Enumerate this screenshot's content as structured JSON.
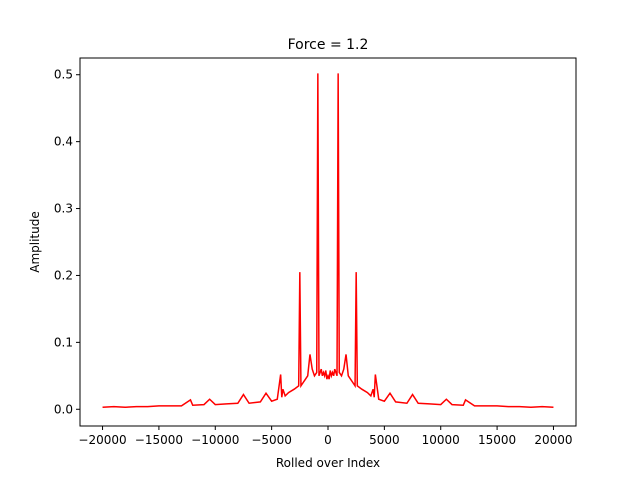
{
  "chart_data": {
    "type": "line",
    "title": "Force = 1.2",
    "xlabel": "Rolled over Index",
    "ylabel": "Amplitude",
    "xlim": [
      -22000,
      22000
    ],
    "ylim": [
      -0.025,
      0.525
    ],
    "grid": false,
    "xticks": [
      -20000,
      -15000,
      -10000,
      -5000,
      0,
      5000,
      10000,
      15000,
      20000
    ],
    "xtick_labels": [
      "−20000",
      "−15000",
      "−10000",
      "−5000",
      "0",
      "5000",
      "10000",
      "15000",
      "20000"
    ],
    "yticks": [
      0.0,
      0.1,
      0.2,
      0.3,
      0.4,
      0.5
    ],
    "ytick_labels": [
      "0.0",
      "0.1",
      "0.2",
      "0.3",
      "0.4",
      "0.5"
    ],
    "series": [
      {
        "color": "#ff0000",
        "x": [
          -20000,
          -19000,
          -18000,
          -17000,
          -16000,
          -15000,
          -14000,
          -13000,
          -12200,
          -12000,
          -11000,
          -10500,
          -10000,
          -9000,
          -8000,
          -7500,
          -7000,
          -6000,
          -5500,
          -5000,
          -4500,
          -4200,
          -4100,
          -4000,
          -3800,
          -3500,
          -3000,
          -2600,
          -2500,
          -2400,
          -2200,
          -2000,
          -1800,
          -1600,
          -1400,
          -1200,
          -1000,
          -900,
          -800,
          -700,
          -600,
          -500,
          -400,
          -300,
          -200,
          -100,
          0,
          100,
          200,
          300,
          400,
          500,
          600,
          700,
          800,
          900,
          1000,
          1200,
          1400,
          1600,
          1800,
          2000,
          2200,
          2400,
          2500,
          2600,
          3000,
          3500,
          3800,
          4000,
          4100,
          4200,
          4500,
          5000,
          5500,
          6000,
          7000,
          7500,
          8000,
          9000,
          10000,
          10500,
          11000,
          12000,
          12200,
          13000,
          14000,
          15000,
          16000,
          17000,
          18000,
          19000,
          20000
        ],
        "y": [
          0.003,
          0.004,
          0.003,
          0.004,
          0.004,
          0.005,
          0.005,
          0.005,
          0.014,
          0.006,
          0.007,
          0.015,
          0.007,
          0.008,
          0.009,
          0.022,
          0.009,
          0.011,
          0.024,
          0.012,
          0.015,
          0.052,
          0.018,
          0.03,
          0.02,
          0.025,
          0.03,
          0.035,
          0.205,
          0.035,
          0.04,
          0.045,
          0.05,
          0.082,
          0.06,
          0.05,
          0.055,
          0.502,
          0.05,
          0.055,
          0.06,
          0.05,
          0.055,
          0.05,
          0.058,
          0.045,
          0.05,
          0.045,
          0.058,
          0.05,
          0.055,
          0.05,
          0.06,
          0.055,
          0.05,
          0.502,
          0.055,
          0.05,
          0.06,
          0.082,
          0.05,
          0.045,
          0.04,
          0.035,
          0.205,
          0.035,
          0.03,
          0.025,
          0.02,
          0.03,
          0.018,
          0.052,
          0.015,
          0.012,
          0.024,
          0.011,
          0.009,
          0.022,
          0.009,
          0.008,
          0.007,
          0.015,
          0.007,
          0.006,
          0.014,
          0.005,
          0.005,
          0.005,
          0.004,
          0.004,
          0.003,
          0.004,
          0.003
        ]
      }
    ]
  }
}
